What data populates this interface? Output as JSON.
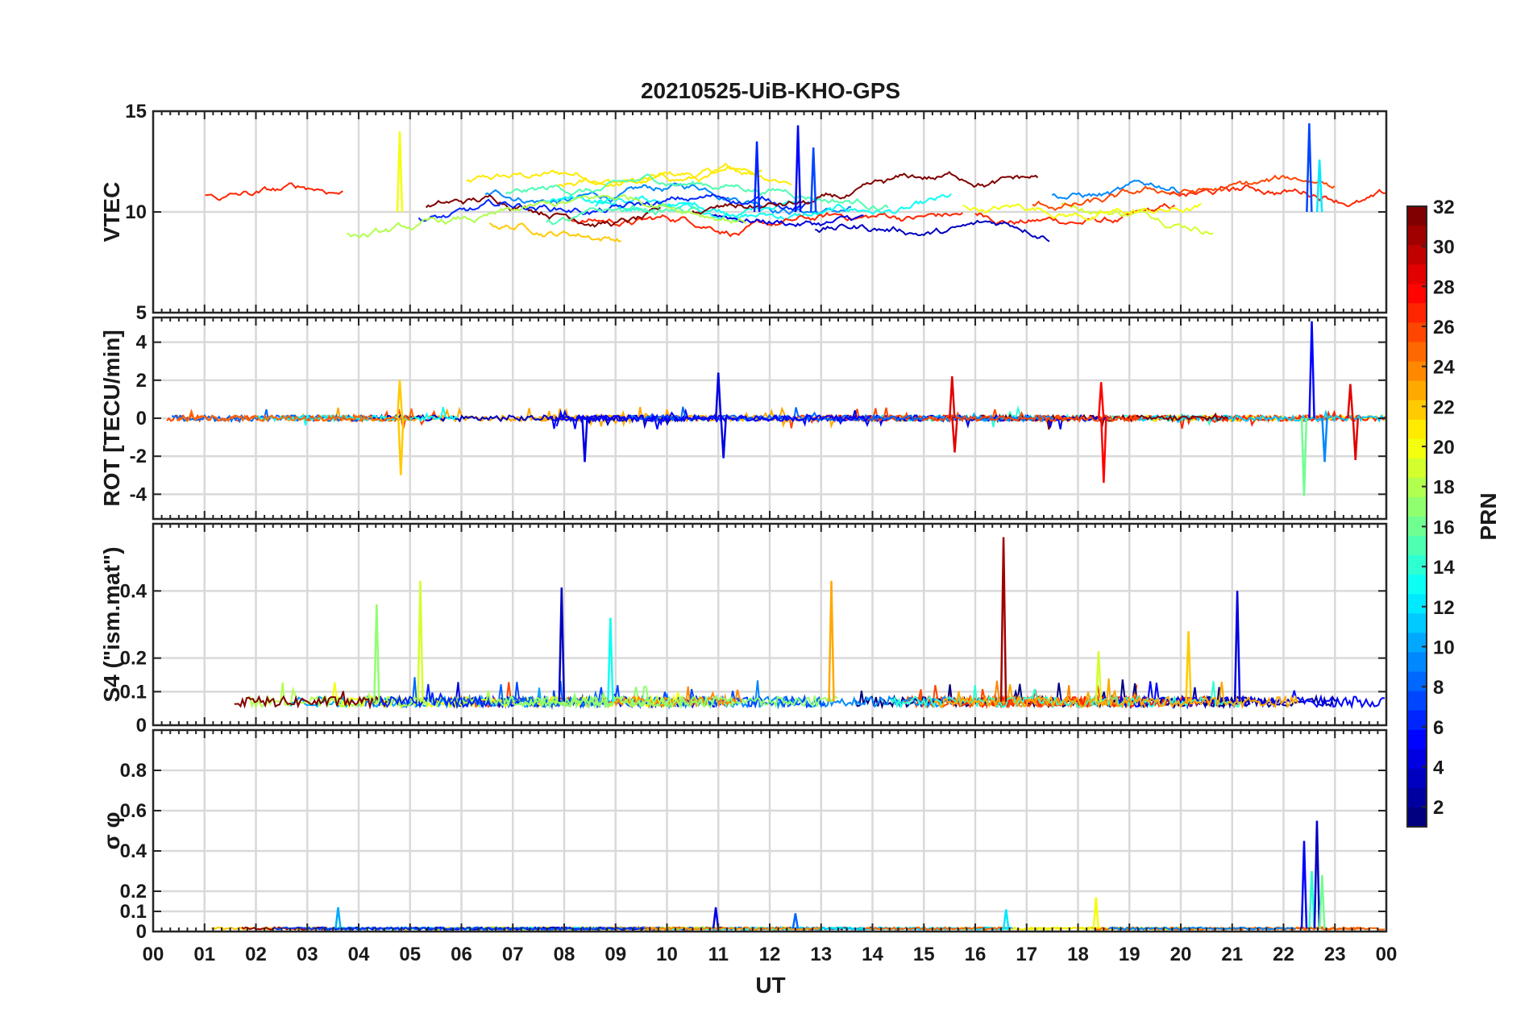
{
  "chart_data": {
    "type": "line",
    "title": "20210525-UiB-KHO-GPS",
    "xlabel": "UT",
    "x_tick_labels": [
      "00",
      "01",
      "02",
      "03",
      "04",
      "05",
      "06",
      "07",
      "08",
      "09",
      "10",
      "11",
      "12",
      "13",
      "14",
      "15",
      "16",
      "17",
      "18",
      "19",
      "20",
      "21",
      "22",
      "23",
      "00"
    ],
    "x_range_hours": [
      0,
      24
    ],
    "grid": true,
    "panels": [
      {
        "ylabel": "VTEC",
        "ylim": [
          5,
          15
        ],
        "y_ticks": [
          5,
          10,
          15
        ],
        "y_tick_labels": [
          "5",
          "10",
          "15"
        ],
        "baseline": 10,
        "noise": 0.12,
        "spikes": [
          {
            "hour": 4.8,
            "value": 14.0,
            "prn": 20
          },
          {
            "hour": 11.75,
            "value": 13.5,
            "prn": 6
          },
          {
            "hour": 12.55,
            "value": 14.3,
            "prn": 5
          },
          {
            "hour": 12.85,
            "value": 13.2,
            "prn": 7
          },
          {
            "hour": 22.5,
            "value": 14.4,
            "prn": 7
          },
          {
            "hour": 22.7,
            "value": 12.6,
            "prn": 12
          }
        ]
      },
      {
        "ylabel": "ROT [TECU/min]",
        "ylim": [
          -5.3,
          5.3
        ],
        "y_ticks": [
          -4,
          -2,
          0,
          2,
          4
        ],
        "y_tick_labels": [
          "-4",
          "-2",
          "0",
          "2",
          "4"
        ],
        "baseline": 0,
        "noise": 0.15,
        "spikes": [
          {
            "hour": 4.8,
            "value": 2.0,
            "prn": 22
          },
          {
            "hour": 4.82,
            "value": -3.0,
            "prn": 22
          },
          {
            "hour": 8.4,
            "value": -2.3,
            "prn": 4
          },
          {
            "hour": 11.0,
            "value": 2.4,
            "prn": 4
          },
          {
            "hour": 11.1,
            "value": -2.1,
            "prn": 4
          },
          {
            "hour": 15.55,
            "value": 2.2,
            "prn": 29
          },
          {
            "hour": 15.6,
            "value": -1.8,
            "prn": 29
          },
          {
            "hour": 18.45,
            "value": 1.9,
            "prn": 28
          },
          {
            "hour": 18.5,
            "value": -3.4,
            "prn": 28
          },
          {
            "hour": 22.4,
            "value": -4.1,
            "prn": 16
          },
          {
            "hour": 22.55,
            "value": 5.1,
            "prn": 5
          },
          {
            "hour": 22.8,
            "value": -2.3,
            "prn": 9
          },
          {
            "hour": 23.3,
            "value": 1.8,
            "prn": 29
          },
          {
            "hour": 23.4,
            "value": -2.2,
            "prn": 29
          }
        ]
      },
      {
        "ylabel": "S4 (\"ism.mat\")",
        "ylim": [
          0,
          0.6
        ],
        "y_ticks": [
          0,
          0.1,
          0.2,
          0.4
        ],
        "y_tick_labels": [
          "0",
          "0.1",
          "0.2",
          "0.4"
        ],
        "baseline": 0.07,
        "noise": 0.015,
        "spikes": [
          {
            "hour": 4.35,
            "value": 0.36,
            "prn": 17
          },
          {
            "hour": 5.2,
            "value": 0.43,
            "prn": 19
          },
          {
            "hour": 7.95,
            "value": 0.41,
            "prn": 3
          },
          {
            "hour": 8.9,
            "value": 0.32,
            "prn": 13
          },
          {
            "hour": 13.2,
            "value": 0.43,
            "prn": 23
          },
          {
            "hour": 16.55,
            "value": 0.56,
            "prn": 31
          },
          {
            "hour": 18.4,
            "value": 0.22,
            "prn": 19
          },
          {
            "hour": 20.15,
            "value": 0.28,
            "prn": 22
          },
          {
            "hour": 21.1,
            "value": 0.4,
            "prn": 4
          }
        ]
      },
      {
        "ylabel": "σ φ",
        "ylim": [
          0,
          1
        ],
        "y_ticks": [
          0,
          0.1,
          0.2,
          0.4,
          0.6,
          0.8
        ],
        "y_tick_labels": [
          "0",
          "0.1",
          "0.2",
          "0.4",
          "0.6",
          "0.8"
        ],
        "baseline": 0.015,
        "noise": 0.006,
        "spikes": [
          {
            "hour": 3.6,
            "value": 0.12,
            "prn": 10
          },
          {
            "hour": 10.95,
            "value": 0.12,
            "prn": 4
          },
          {
            "hour": 12.5,
            "value": 0.09,
            "prn": 8
          },
          {
            "hour": 16.6,
            "value": 0.11,
            "prn": 12
          },
          {
            "hour": 18.35,
            "value": 0.17,
            "prn": 20
          },
          {
            "hour": 22.4,
            "value": 0.45,
            "prn": 5
          },
          {
            "hour": 22.55,
            "value": 0.3,
            "prn": 14
          },
          {
            "hour": 22.65,
            "value": 0.55,
            "prn": 3
          },
          {
            "hour": 22.75,
            "value": 0.28,
            "prn": 16
          }
        ]
      }
    ],
    "colorbar": {
      "label": "PRN",
      "range": [
        1,
        32
      ],
      "colormap": "jet",
      "tick_labels": [
        "2",
        "4",
        "6",
        "8",
        "10",
        "12",
        "14",
        "16",
        "18",
        "20",
        "22",
        "24",
        "26",
        "28",
        "30",
        "32"
      ]
    }
  }
}
